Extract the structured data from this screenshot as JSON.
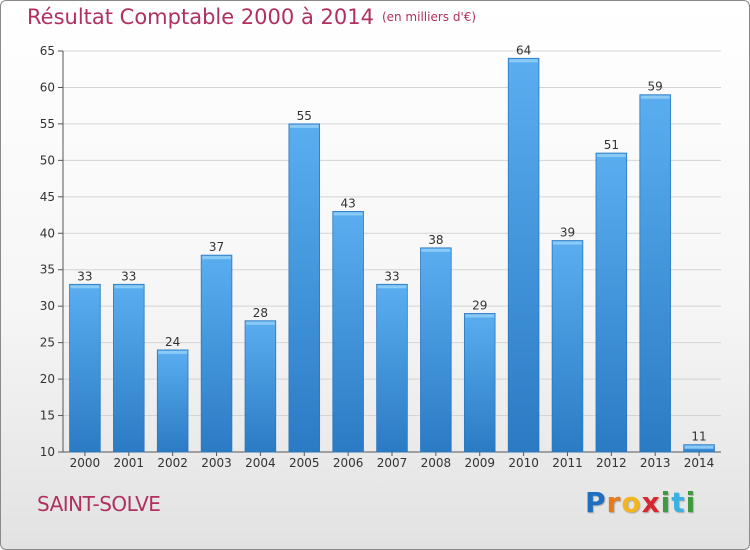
{
  "title": "Résultat Comptable 2000 à 2014",
  "subtitle": "(en milliers d'€)",
  "town": "SAINT-SOLVE",
  "logo": {
    "letters": [
      "P",
      "r",
      "o",
      "x",
      "i",
      "t",
      "i"
    ],
    "colors": [
      "#1e6fc0",
      "#e87a1e",
      "#f2b51e",
      "#d8262e",
      "#3c9b3c",
      "#3cb0e0",
      "#3c9b3c"
    ]
  },
  "colors": {
    "bar": "#4a9ee0",
    "bar_dark": "#2a78c0",
    "title": "#b03060"
  },
  "chart_data": {
    "type": "bar",
    "title": "Résultat Comptable 2000 à 2014",
    "subtitle": "(en milliers d'€)",
    "categories": [
      "2000",
      "2001",
      "2002",
      "2003",
      "2004",
      "2005",
      "2006",
      "2007",
      "2008",
      "2009",
      "2010",
      "2011",
      "2012",
      "2013",
      "2014"
    ],
    "values": [
      33,
      33,
      24,
      37,
      28,
      55,
      43,
      33,
      38,
      29,
      64,
      39,
      51,
      59,
      11
    ],
    "data_labels": [
      "33",
      "33",
      "24",
      "37",
      "28",
      "55",
      "43",
      "33",
      "38",
      "29",
      "64",
      "39",
      "51",
      "59",
      "11"
    ],
    "ylim": [
      10,
      65
    ],
    "yticks": [
      10,
      15,
      20,
      25,
      30,
      35,
      40,
      45,
      50,
      55,
      60,
      65
    ],
    "grid": true,
    "xlabel": "",
    "ylabel": ""
  }
}
